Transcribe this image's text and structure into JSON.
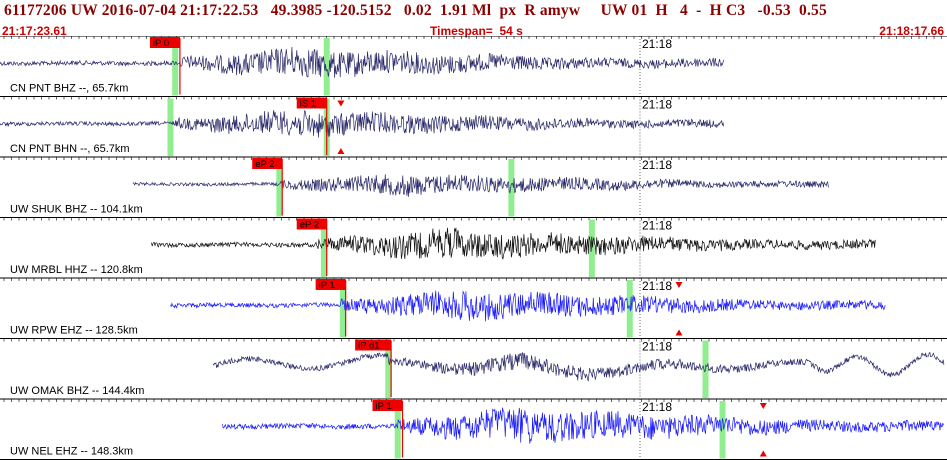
{
  "header": {
    "title": "61177206 UW 2016-07-04 21:17:22.53   49.3985 -120.5152   0.02  1.91 Ml  px  R amyw     UW 01  H   4  -  H C3   -0.53  0.55",
    "start_time": "21:17:23.61",
    "timespan": "Timespan=  54 s",
    "end_time": "21:18:17.66"
  },
  "minute_label": "21:18",
  "colors": {
    "dark": "#2a2a6a",
    "black": "#111111",
    "blue": "#1a1aff",
    "pick": "#ee0000",
    "green": "#90ee90"
  },
  "traces": [
    {
      "label": "CN PNT BHZ --, 65.7km",
      "pick": "iP 0",
      "color": "dark",
      "start": 0.0,
      "end": 0.765,
      "onset": 0.19,
      "arrival": 0.19,
      "greens": [
        0.185,
        0.345
      ],
      "amp": 0.85,
      "style": "noise",
      "markers": []
    },
    {
      "label": "CN PNT BHN --, 65.7km",
      "pick": "iS 1",
      "color": "dark",
      "start": 0.0,
      "end": 0.765,
      "onset": 0.185,
      "arrival": 0.345,
      "greens": [
        0.18,
        0.345
      ],
      "amp": 0.75,
      "style": "noise",
      "markers": [
        0.36
      ]
    },
    {
      "label": "UW SHUK BHZ -- 104.1km",
      "pick": "eP 2",
      "color": "dark",
      "start": 0.14,
      "end": 0.875,
      "onset": 0.295,
      "arrival": 0.298,
      "greens": [
        0.295,
        0.54
      ],
      "amp": 0.6,
      "style": "noise",
      "markers": []
    },
    {
      "label": "UW MRBL HHZ -- 120.8km",
      "pick": "eP 2",
      "color": "black",
      "start": 0.16,
      "end": 0.925,
      "onset": 0.335,
      "arrival": 0.345,
      "greens": [
        0.342,
        0.625
      ],
      "amp": 0.85,
      "style": "noise",
      "markers": []
    },
    {
      "label": "UW RPW EHZ -- 128.5km",
      "pick": "iP 1",
      "color": "blue",
      "start": 0.18,
      "end": 0.935,
      "onset": 0.36,
      "arrival": 0.365,
      "greens": [
        0.362,
        0.665
      ],
      "amp": 0.85,
      "style": "noise",
      "markers": [
        0.717
      ]
    },
    {
      "label": "UW OMAK BHZ -- 144.4km",
      "pick": "iP d1",
      "color": "dark",
      "start": 0.225,
      "end": 0.997,
      "onset": 0.41,
      "arrival": 0.413,
      "greens": [
        0.41,
        0.745
      ],
      "amp": 0.9,
      "style": "long",
      "markers": []
    },
    {
      "label": "UW NEL EHZ -- 148.3km",
      "pick": "iP 1",
      "color": "blue",
      "start": 0.235,
      "end": 0.997,
      "onset": 0.42,
      "arrival": 0.425,
      "greens": [
        0.42,
        0.763
      ],
      "amp": 1.0,
      "style": "noise",
      "markers": [
        0.806
      ]
    }
  ]
}
